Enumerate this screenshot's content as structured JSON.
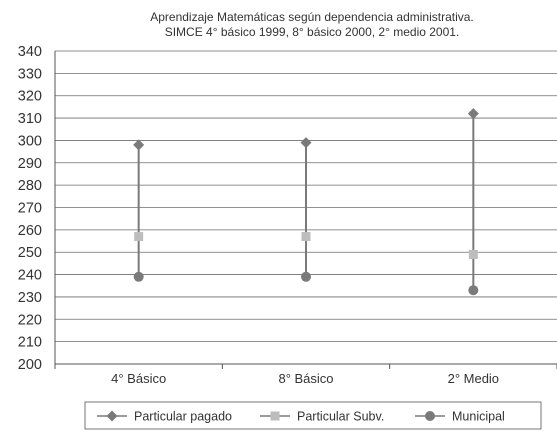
{
  "chart_data": {
    "type": "line",
    "title_line1": "Aprendizaje Matemáticas según dependencia administrativa.",
    "title_line2": "SIMCE 4° básico 1999, 8° básico 2000, 2° medio 2001.",
    "categories": [
      "4° Básico",
      "8° Básico",
      "2° Medio"
    ],
    "series": [
      {
        "name": "Particular pagado",
        "values": [
          298,
          299,
          312
        ],
        "marker": "diamond",
        "color": "#7a7a7a"
      },
      {
        "name": "Particular Subv.",
        "values": [
          257,
          257,
          249
        ],
        "marker": "square",
        "color": "#bdbdbd"
      },
      {
        "name": "Municipal",
        "values": [
          239,
          239,
          233
        ],
        "marker": "circle",
        "color": "#7a7a7a"
      }
    ],
    "ylim": [
      200,
      340
    ],
    "yticks": [
      "200",
      "210",
      "220",
      "230",
      "240",
      "250",
      "260",
      "270",
      "280",
      "290",
      "300",
      "310",
      "320",
      "330",
      "340"
    ],
    "grid": true,
    "high_low_lines": true,
    "legend_position": "bottom"
  }
}
